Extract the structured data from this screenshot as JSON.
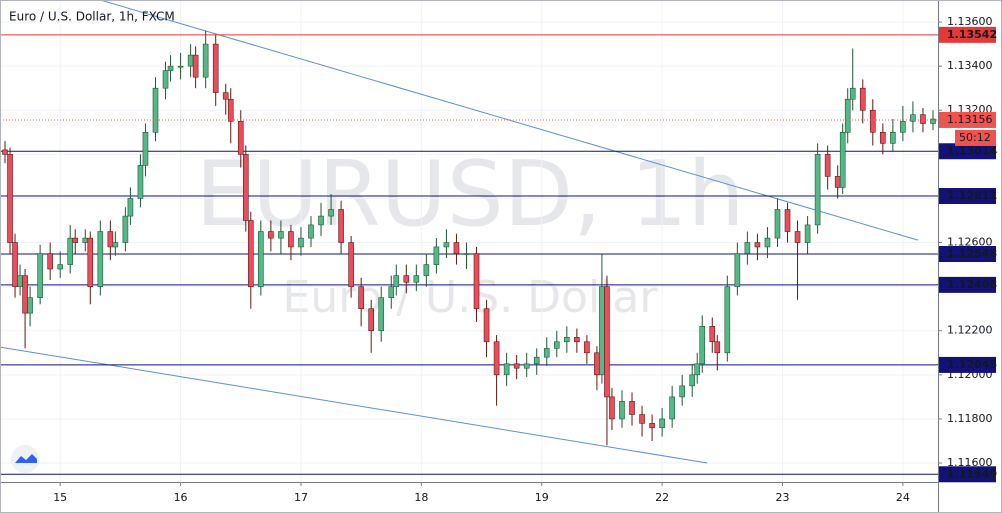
{
  "chart_data": {
    "type": "candlestick",
    "title": "Euro / U.S. Dollar, 1h, FXCM",
    "watermark": "EURUSD, 1h",
    "watermark_sub": "Euro / U.S. Dollar",
    "xlim": [
      0,
      187
    ],
    "ylim": [
      1.11514,
      1.137
    ],
    "grid": true,
    "up_color": "#53b987",
    "down_color": "#eb4d5c",
    "xticks": [
      {
        "value": 12,
        "label": "15"
      },
      {
        "value": 36,
        "label": "16"
      },
      {
        "value": 60,
        "label": "17"
      },
      {
        "value": 84,
        "label": "18"
      },
      {
        "value": 108,
        "label": "19"
      },
      {
        "value": 132,
        "label": "22"
      },
      {
        "value": 156,
        "label": "23"
      },
      {
        "value": 180,
        "label": "24"
      }
    ],
    "yticks": [
      {
        "value": 1.116,
        "label": "1.11600"
      },
      {
        "value": 1.118,
        "label": "1.11800"
      },
      {
        "value": 1.12,
        "label": "1.12000"
      },
      {
        "value": 1.122,
        "label": "1.12200"
      },
      {
        "value": 1.124,
        "label": "1.12400"
      },
      {
        "value": 1.126,
        "label": "1.12600"
      },
      {
        "value": 1.128,
        "label": "1.12800"
      },
      {
        "value": 1.13,
        "label": "1.13000"
      },
      {
        "value": 1.132,
        "label": "1.13200"
      },
      {
        "value": 1.134,
        "label": "1.13400"
      },
      {
        "value": 1.136,
        "label": "1.13600"
      }
    ],
    "levels": [
      {
        "value": 1.13542,
        "color": "#e53935"
      },
      {
        "value": 1.13014,
        "color": "#131377"
      },
      {
        "value": 1.12811,
        "color": "#131377"
      },
      {
        "value": 1.12548,
        "color": "#131377"
      },
      {
        "value": 1.12408,
        "color": "#131377"
      },
      {
        "value": 1.12045,
        "color": "#131377"
      },
      {
        "value": 1.11549,
        "color": "#131377"
      }
    ],
    "last_price": 1.13156,
    "last_color": "#ef5350",
    "countdown": "50:12",
    "trendlines": [
      {
        "x": [
          20,
          183
        ],
        "y": [
          1.137,
          1.12611
        ],
        "color": "#5b8fd6"
      },
      {
        "x": [
          0,
          141
        ],
        "y": [
          1.12126,
          1.116
        ],
        "color": "#5b8fd6"
      }
    ],
    "x": [
      1,
      2,
      3,
      4,
      5,
      6,
      8,
      10,
      12,
      14,
      15,
      17,
      18,
      20,
      22,
      23,
      25,
      26,
      28,
      29,
      31,
      33,
      34,
      36,
      38,
      39,
      41,
      43,
      45,
      46,
      48,
      49,
      50,
      52,
      54,
      56,
      58,
      60,
      62,
      64,
      66,
      68,
      70,
      72,
      74,
      76,
      78,
      79,
      81,
      83,
      85,
      87,
      89,
      91,
      93,
      95,
      97,
      99,
      101,
      103,
      105,
      107,
      109,
      111,
      113,
      115,
      117,
      119,
      120,
      121,
      122,
      124,
      126,
      128,
      130,
      132,
      134,
      136,
      138,
      139,
      140,
      142,
      143,
      145,
      147,
      149,
      151,
      153,
      155,
      157,
      159,
      161,
      163,
      165,
      167,
      168,
      169,
      170,
      172,
      174,
      176,
      178,
      180,
      182,
      184,
      186
    ],
    "open": [
      1.1302,
      1.13,
      1.126,
      1.124,
      1.1245,
      1.1228,
      1.1235,
      1.1255,
      1.1248,
      1.125,
      1.1262,
      1.126,
      1.1262,
      1.124,
      1.1265,
      1.1258,
      1.126,
      1.1272,
      1.128,
      1.1295,
      1.131,
      1.133,
      1.1338,
      1.134,
      1.134,
      1.1345,
      1.1335,
      1.135,
      1.1328,
      1.1325,
      1.1315,
      1.13,
      1.127,
      1.124,
      1.1265,
      1.1262,
      1.1265,
      1.1258,
      1.1262,
      1.1268,
      1.1272,
      1.1275,
      1.126,
      1.124,
      1.123,
      1.122,
      1.1235,
      1.124,
      1.1245,
      1.1242,
      1.1245,
      1.125,
      1.1258,
      1.126,
      1.1255,
      1.1255,
      1.123,
      1.1215,
      1.12,
      1.1205,
      1.1203,
      1.1205,
      1.1208,
      1.1212,
      1.1215,
      1.1217,
      1.1215,
      1.121,
      1.12,
      1.124,
      1.119,
      1.118,
      1.1188,
      1.1182,
      1.1178,
      1.1176,
      1.118,
      1.119,
      1.1195,
      1.12,
      1.1205,
      1.1222,
      1.1215,
      1.121,
      1.124,
      1.1255,
      1.126,
      1.1258,
      1.1262,
      1.1275,
      1.1265,
      1.126,
      1.1268,
      1.13,
      1.129,
      1.1285,
      1.131,
      1.1325,
      1.133,
      1.132,
      1.131,
      1.1305,
      1.131,
      1.1315,
      1.1318,
      1.1314
    ],
    "high": [
      1.1306,
      1.1303,
      1.1264,
      1.125,
      1.1248,
      1.124,
      1.1259,
      1.126,
      1.1256,
      1.1268,
      1.1266,
      1.1266,
      1.1265,
      1.127,
      1.127,
      1.1265,
      1.1276,
      1.1285,
      1.13,
      1.1314,
      1.1335,
      1.1342,
      1.1345,
      1.1346,
      1.135,
      1.1349,
      1.1356,
      1.1354,
      1.1332,
      1.133,
      1.132,
      1.1304,
      1.1274,
      1.127,
      1.127,
      1.127,
      1.1268,
      1.1267,
      1.1272,
      1.1278,
      1.1282,
      1.1279,
      1.1263,
      1.1244,
      1.1234,
      1.124,
      1.1245,
      1.125,
      1.125,
      1.125,
      1.1255,
      1.1262,
      1.1266,
      1.1264,
      1.126,
      1.1258,
      1.1234,
      1.1218,
      1.121,
      1.1209,
      1.121,
      1.1212,
      1.1217,
      1.122,
      1.1222,
      1.1221,
      1.1218,
      1.1213,
      1.1255,
      1.1245,
      1.1194,
      1.1193,
      1.1192,
      1.1186,
      1.1182,
      1.1185,
      1.1195,
      1.12,
      1.1205,
      1.121,
      1.1227,
      1.1226,
      1.1218,
      1.1245,
      1.126,
      1.1265,
      1.1264,
      1.1267,
      1.128,
      1.1278,
      1.127,
      1.1272,
      1.1305,
      1.1304,
      1.1295,
      1.1314,
      1.133,
      1.1348,
      1.1334,
      1.1325,
      1.1314,
      1.1316,
      1.1322,
      1.1324,
      1.1321,
      1.132
    ],
    "low": [
      1.1296,
      1.1255,
      1.1235,
      1.1236,
      1.1212,
      1.1222,
      1.1232,
      1.1243,
      1.1244,
      1.1246,
      1.1255,
      1.1256,
      1.1232,
      1.1236,
      1.1252,
      1.1254,
      1.1256,
      1.1268,
      1.1276,
      1.129,
      1.1306,
      1.1325,
      1.1333,
      1.1334,
      1.1335,
      1.133,
      1.133,
      1.1322,
      1.1318,
      1.1305,
      1.1294,
      1.1265,
      1.123,
      1.1236,
      1.1256,
      1.1255,
      1.1252,
      1.1254,
      1.1258,
      1.1263,
      1.1268,
      1.1255,
      1.1235,
      1.1222,
      1.121,
      1.1215,
      1.123,
      1.1236,
      1.1237,
      1.1238,
      1.124,
      1.1246,
      1.1253,
      1.125,
      1.1248,
      1.1224,
      1.1208,
      1.1186,
      1.1195,
      1.1198,
      1.1199,
      1.12,
      1.1204,
      1.1208,
      1.121,
      1.121,
      1.1205,
      1.1193,
      1.1196,
      1.1168,
      1.1175,
      1.1176,
      1.1177,
      1.1172,
      1.117,
      1.1172,
      1.1176,
      1.1186,
      1.119,
      1.1196,
      1.1201,
      1.121,
      1.1202,
      1.1206,
      1.1236,
      1.125,
      1.1252,
      1.1253,
      1.1258,
      1.126,
      1.1234,
      1.1255,
      1.1264,
      1.1284,
      1.128,
      1.1282,
      1.1305,
      1.132,
      1.1314,
      1.1304,
      1.13,
      1.1301,
      1.1306,
      1.131,
      1.131,
      1.1311
    ],
    "close": [
      1.13,
      1.126,
      1.124,
      1.1245,
      1.1228,
      1.1235,
      1.1255,
      1.1248,
      1.125,
      1.1262,
      1.126,
      1.1262,
      1.124,
      1.1265,
      1.1258,
      1.126,
      1.1272,
      1.128,
      1.1295,
      1.131,
      1.133,
      1.1338,
      1.134,
      1.134,
      1.1345,
      1.1335,
      1.135,
      1.1328,
      1.1325,
      1.1315,
      1.13,
      1.127,
      1.124,
      1.1265,
      1.1262,
      1.1265,
      1.1258,
      1.1262,
      1.1268,
      1.1272,
      1.1275,
      1.126,
      1.124,
      1.123,
      1.122,
      1.1235,
      1.124,
      1.1245,
      1.1242,
      1.1245,
      1.125,
      1.1258,
      1.126,
      1.1255,
      1.1255,
      1.123,
      1.1215,
      1.12,
      1.1205,
      1.1203,
      1.1205,
      1.1208,
      1.1212,
      1.1215,
      1.1217,
      1.1215,
      1.121,
      1.12,
      1.124,
      1.119,
      1.118,
      1.1188,
      1.1182,
      1.1178,
      1.1176,
      1.118,
      1.119,
      1.1195,
      1.12,
      1.1205,
      1.1222,
      1.1215,
      1.121,
      1.124,
      1.1255,
      1.126,
      1.1258,
      1.1262,
      1.1275,
      1.1265,
      1.126,
      1.1268,
      1.13,
      1.129,
      1.1285,
      1.131,
      1.1325,
      1.133,
      1.132,
      1.131,
      1.1305,
      1.131,
      1.1315,
      1.1318,
      1.1314,
      1.1316
    ]
  }
}
